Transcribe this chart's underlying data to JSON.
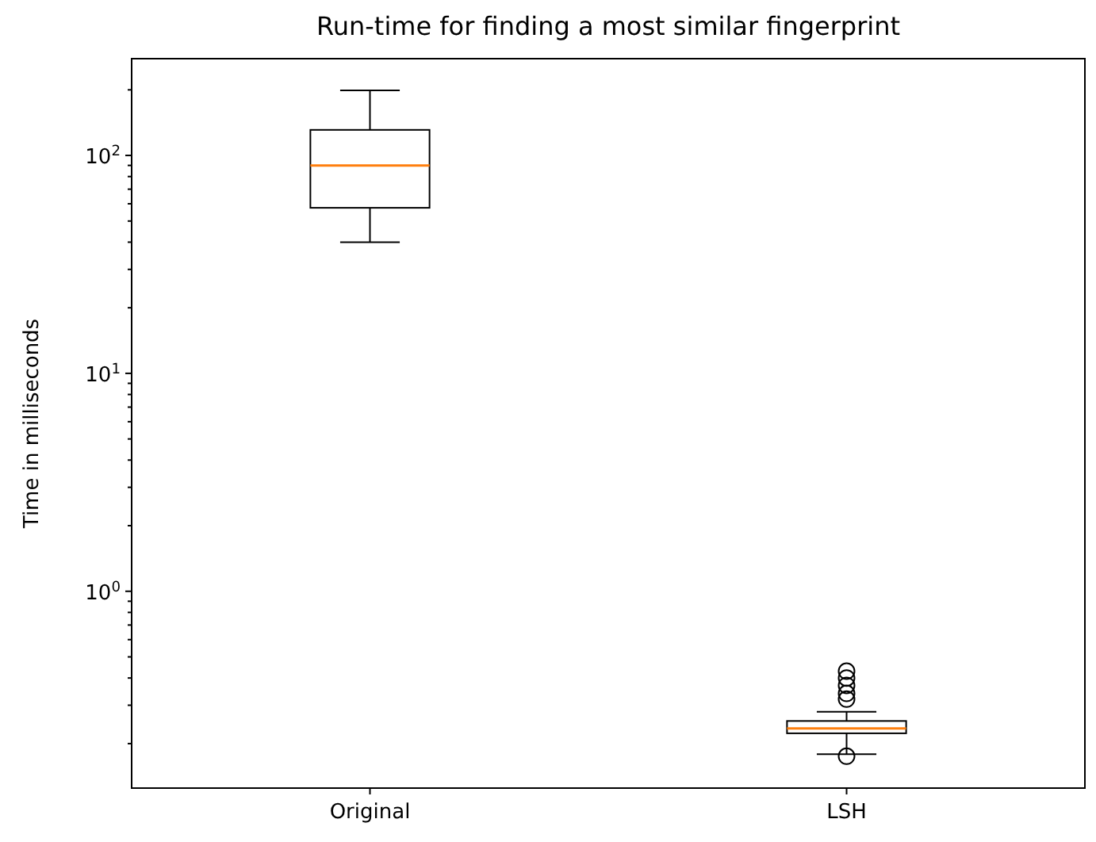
{
  "chart_data": {
    "type": "box",
    "title": "Run-time for finding a most similar fingerprint",
    "ylabel": "Time in milliseconds",
    "categories": [
      "Original",
      "LSH"
    ],
    "log": true,
    "ylim": [
      0.125,
      278
    ],
    "yticks": [
      {
        "value": 0.2,
        "label": null
      },
      {
        "value": 0.3,
        "label": null
      },
      {
        "value": 0.4,
        "label": null
      },
      {
        "value": 0.5,
        "label": null
      },
      {
        "value": 0.6,
        "label": null
      },
      {
        "value": 0.7,
        "label": null
      },
      {
        "value": 0.8,
        "label": null
      },
      {
        "value": 0.9,
        "label": null
      },
      {
        "value": 1,
        "label": "10$^{0}$"
      },
      {
        "value": 2,
        "label": null
      },
      {
        "value": 3,
        "label": null
      },
      {
        "value": 4,
        "label": null
      },
      {
        "value": 5,
        "label": null
      },
      {
        "value": 6,
        "label": null
      },
      {
        "value": 7,
        "label": null
      },
      {
        "value": 8,
        "label": null
      },
      {
        "value": 9,
        "label": null
      },
      {
        "value": 10,
        "label": "10$^{1}$"
      },
      {
        "value": 20,
        "label": null
      },
      {
        "value": 30,
        "label": null
      },
      {
        "value": 40,
        "label": null
      },
      {
        "value": 50,
        "label": null
      },
      {
        "value": 60,
        "label": null
      },
      {
        "value": 70,
        "label": null
      },
      {
        "value": 80,
        "label": null
      },
      {
        "value": 90,
        "label": null
      },
      {
        "value": 100,
        "label": "10$^{2}$"
      },
      {
        "value": 200,
        "label": null
      }
    ],
    "boxes": [
      {
        "low": 40,
        "q1": 57.5,
        "median": 90,
        "q3": 131,
        "high": 199
      },
      {
        "low": 0.179,
        "q1": 0.223,
        "median": 0.235,
        "q3": 0.254,
        "high": 0.28,
        "outliers": [
          0.175,
          0.32,
          0.34,
          0.37,
          0.4,
          0.43
        ]
      }
    ]
  }
}
